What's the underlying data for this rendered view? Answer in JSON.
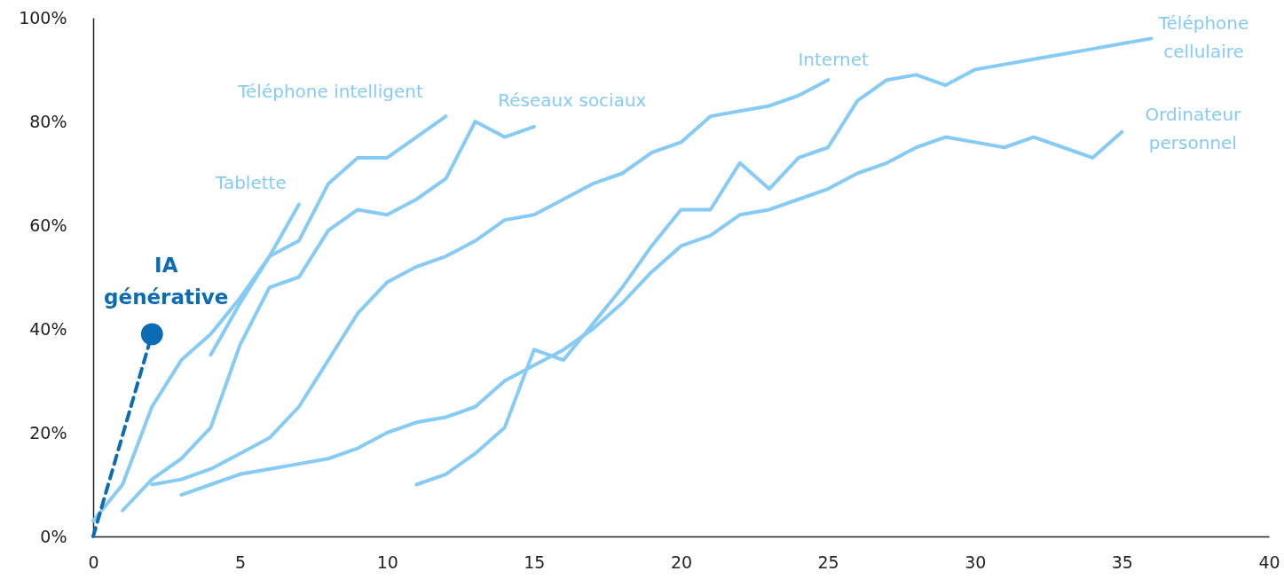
{
  "chart_data": {
    "type": "line",
    "line_style": "solid",
    "xlim": [
      0,
      40
    ],
    "xticks": [
      0,
      5,
      10,
      15,
      20,
      25,
      30,
      35,
      40
    ],
    "ylim": [
      0,
      100
    ],
    "yticks": [
      {
        "value": 0,
        "label": "0%"
      },
      {
        "value": 20,
        "label": "20%"
      },
      {
        "value": 40,
        "label": "40%"
      },
      {
        "value": 60,
        "label": "60%"
      },
      {
        "value": 80,
        "label": "80%"
      },
      {
        "value": 100,
        "label": "100%"
      }
    ],
    "series": [
      {
        "name": "Téléphone intelligent",
        "color": "#86cbf5",
        "x": [
          0,
          1,
          2,
          3,
          4,
          5,
          6,
          7,
          8,
          9,
          10,
          11,
          12
        ],
        "values": [
          3,
          10,
          25,
          34,
          39,
          46,
          54,
          57,
          68,
          73,
          73,
          77,
          81
        ]
      },
      {
        "name": "Tablette",
        "color": "#86cbf5",
        "x": [
          4,
          5,
          6,
          7
        ],
        "values": [
          35,
          45,
          54,
          64
        ]
      },
      {
        "name": "Réseaux sociaux",
        "color": "#86cbf5",
        "x": [
          1,
          2,
          3,
          4,
          5,
          6,
          7,
          8,
          9,
          10,
          11,
          12,
          13,
          14,
          15
        ],
        "values": [
          5,
          11,
          15,
          21,
          37,
          48,
          50,
          59,
          63,
          62,
          65,
          69,
          80,
          77,
          79
        ]
      },
      {
        "name": "Internet",
        "color": "#86cbf5",
        "x": [
          2,
          3,
          4,
          5,
          6,
          7,
          8,
          9,
          10,
          11,
          12,
          13,
          14,
          15,
          16,
          17,
          18,
          19,
          20,
          21,
          22,
          23,
          24,
          25
        ],
        "values": [
          10,
          11,
          13,
          16,
          19,
          25,
          34,
          43,
          49,
          52,
          54,
          57,
          61,
          62,
          65,
          68,
          70,
          74,
          76,
          81,
          82,
          83,
          85,
          88
        ]
      },
      {
        "name": "Téléphone cellulaire",
        "color": "#86cbf5",
        "x": [
          11,
          12,
          13,
          14,
          15,
          16,
          17,
          18,
          19,
          20,
          21,
          22,
          23,
          24,
          25,
          26,
          27,
          28,
          29,
          30,
          31,
          32,
          33,
          34,
          35,
          36
        ],
        "values": [
          10,
          12,
          16,
          21,
          36,
          34,
          41,
          48,
          56,
          63,
          63,
          72,
          67,
          73,
          75,
          84,
          88,
          89,
          87,
          90,
          91,
          92,
          93,
          94,
          95,
          96
        ]
      },
      {
        "name": "Ordinateur personnel",
        "color": "#86cbf5",
        "x": [
          3,
          4,
          5,
          6,
          7,
          8,
          9,
          10,
          11,
          12,
          13,
          14,
          15,
          16,
          17,
          18,
          19,
          20,
          21,
          22,
          23,
          24,
          25,
          26,
          27,
          28,
          29,
          30,
          31,
          32,
          33,
          34,
          35
        ],
        "values": [
          8,
          10,
          12,
          13,
          14,
          15,
          17,
          20,
          22,
          23,
          25,
          30,
          33,
          36,
          40,
          45,
          51,
          56,
          58,
          62,
          63,
          65,
          67,
          70,
          72,
          75,
          77,
          76,
          75,
          77,
          75,
          73,
          78
        ]
      },
      {
        "color": "#0b6cb5",
        "line_style": "dashed",
        "x": [
          0,
          2
        ],
        "values": [
          0,
          39
        ]
      },
      {
        "name": "IA générative",
        "type": "scatter",
        "marker": "circle",
        "color": "#0b6cb5",
        "x": [
          2
        ],
        "values": [
          39
        ]
      }
    ]
  }
}
